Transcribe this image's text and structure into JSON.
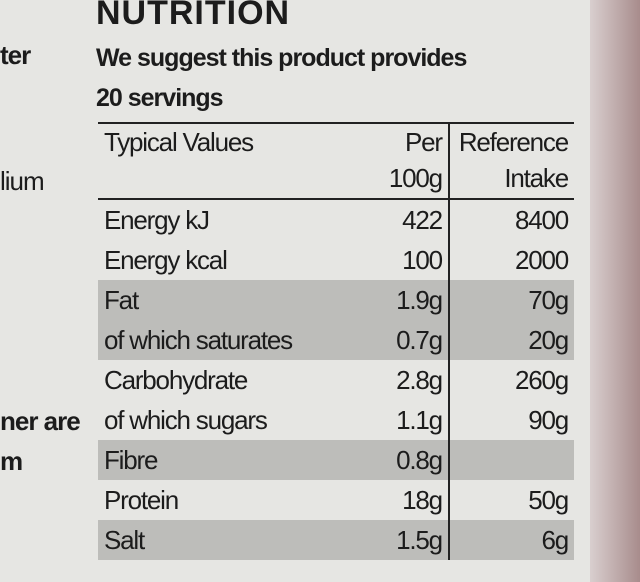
{
  "header": {
    "title": "NUTRITION",
    "subtitle_lines": [
      "We suggest this product provides",
      "20 servings"
    ]
  },
  "side_fragments": [
    "ter",
    "lium",
    "ner are",
    "m"
  ],
  "table": {
    "header": [
      "Typical Values",
      "Per 100g",
      "Reference Intake"
    ],
    "rows": [
      {
        "cells": [
          "Energy kJ",
          "422",
          "8400"
        ],
        "shaded": false
      },
      {
        "cells": [
          "Energy kcal",
          "100",
          "2000"
        ],
        "shaded": false
      },
      {
        "cells": [
          "Fat",
          "1.9g",
          "70g"
        ],
        "shaded": true
      },
      {
        "cells": [
          "of which saturates",
          "0.7g",
          "20g"
        ],
        "shaded": true
      },
      {
        "cells": [
          "Carbohydrate",
          "2.8g",
          "260g"
        ],
        "shaded": false
      },
      {
        "cells": [
          "of which sugars",
          "1.1g",
          "90g"
        ],
        "shaded": false
      },
      {
        "cells": [
          "Fibre",
          "0.8g"
        ],
        "shaded": true
      },
      {
        "cells": [
          "Protein",
          "18g",
          "50g"
        ],
        "shaded": false
      },
      {
        "cells": [
          "Salt",
          "1.5g",
          "6g"
        ],
        "shaded": true
      }
    ]
  }
}
